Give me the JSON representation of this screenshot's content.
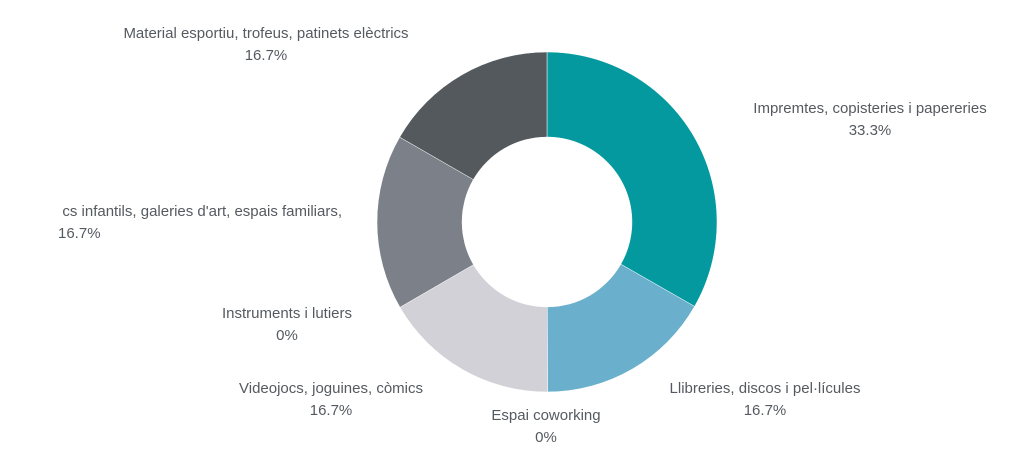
{
  "chart_data": {
    "type": "pie",
    "style": "donut",
    "title": "",
    "slices": [
      {
        "label": "Impremtes, copisteries i papereries",
        "value": 33.3,
        "display": "33.3%",
        "color": "#03999e"
      },
      {
        "label": "Llibreries, discos i pel·lícules",
        "value": 16.7,
        "display": "16.7%",
        "color": "#6aafcc"
      },
      {
        "label": "Espai coworking",
        "value": 0,
        "display": "0%",
        "color": "#e6e6e6"
      },
      {
        "label": "Videojocs, joguines, còmics",
        "value": 16.7,
        "display": "16.7%",
        "color": "#d2d1d7"
      },
      {
        "label": "Instruments i lutiers",
        "value": 0,
        "display": "0%",
        "color": "#c7c7c7"
      },
      {
        "label": "cs infantils, galeries d'art, espais familiars,",
        "value": 16.7,
        "display": "16.7%",
        "color": "#7c8088"
      },
      {
        "label": "Material esportiu, trofeus, patinets elèctrics",
        "value": 16.7,
        "display": "16.7%",
        "color": "#53595c"
      }
    ]
  }
}
